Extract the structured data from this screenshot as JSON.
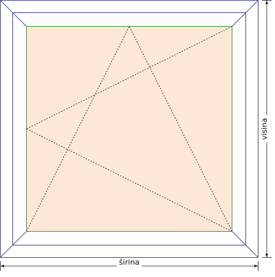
{
  "diagram": {
    "type": "window-opening-schematic",
    "opening": "tilt-and-turn",
    "labels": {
      "width": "širina",
      "height": "visina"
    },
    "colors": {
      "frame": "#4a4fb0",
      "sash": "#3aa63a",
      "glass": "#fde8d6",
      "opening_lines": "#333333",
      "dimension": "#222222"
    }
  }
}
